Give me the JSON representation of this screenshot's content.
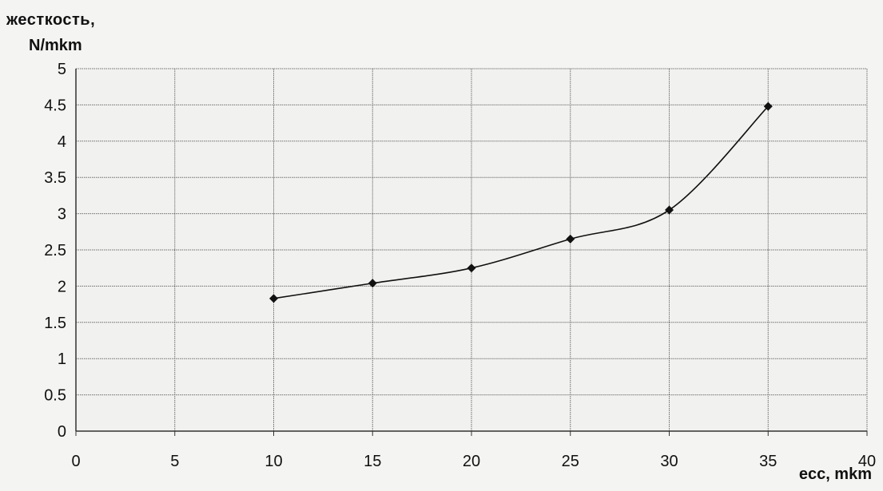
{
  "chart_data": {
    "type": "line",
    "title": "",
    "ylabel_line1": "жесткость,",
    "ylabel_line2": "N/mkm",
    "xlabel": "ecc, mkm",
    "xlim": [
      0,
      40
    ],
    "ylim": [
      0,
      5
    ],
    "x_ticks": [
      0,
      5,
      10,
      15,
      20,
      25,
      30,
      35,
      40
    ],
    "y_ticks": [
      0,
      0.5,
      1,
      1.5,
      2,
      2.5,
      3,
      3.5,
      4,
      4.5,
      5
    ],
    "grid": true,
    "legend": "none",
    "line_color": "#111111",
    "marker": "diamond",
    "series": [
      {
        "x": [
          10,
          15,
          20,
          25,
          30,
          35
        ],
        "y": [
          1.83,
          2.04,
          2.25,
          2.65,
          3.05,
          4.48
        ]
      }
    ]
  }
}
